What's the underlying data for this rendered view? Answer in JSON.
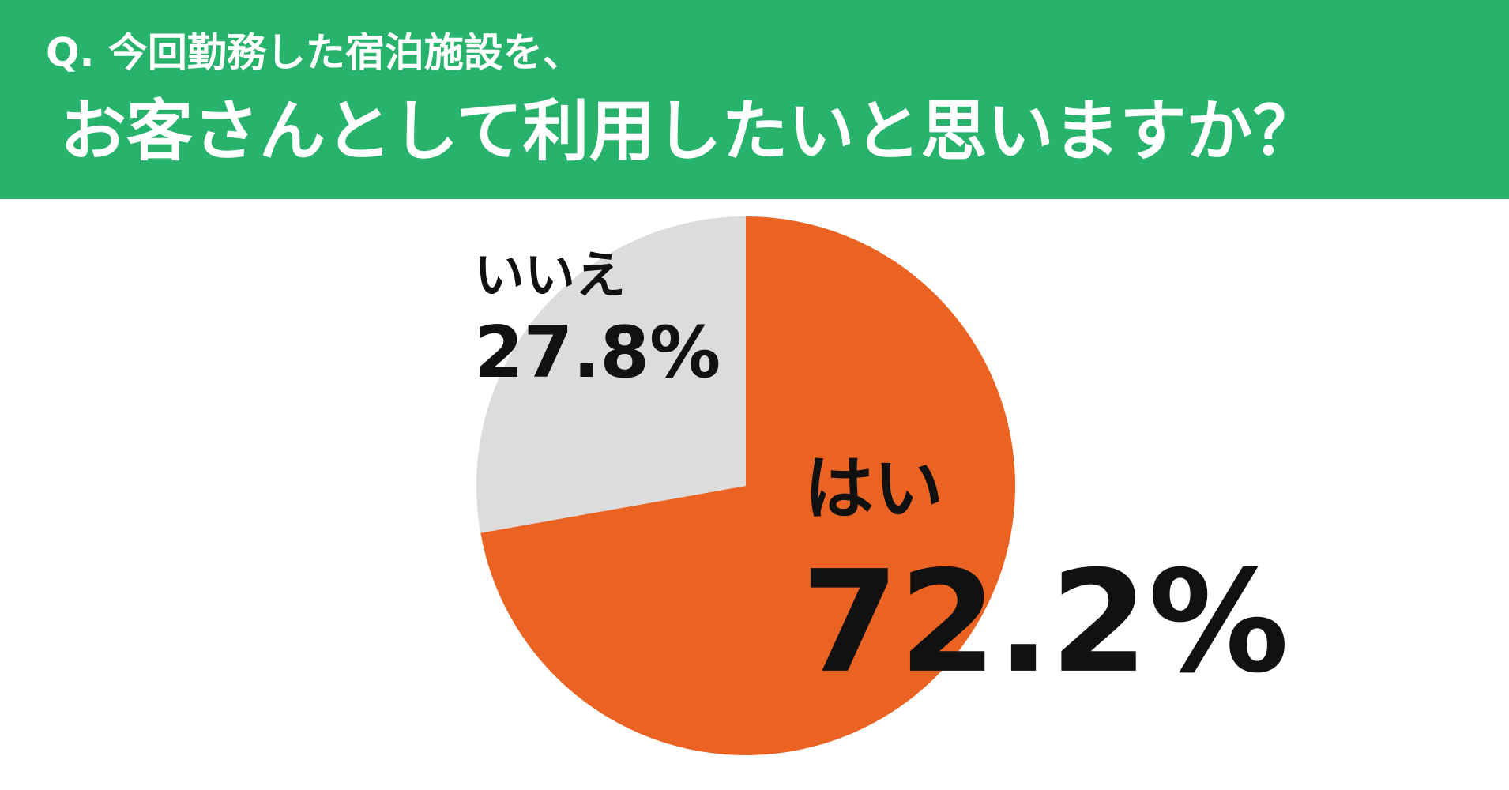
{
  "chart_data": {
    "type": "pie",
    "title": "Q. 今回勤務した宿泊施設を、",
    "subtitle": "お客さんとして利用したいと思いますか？",
    "categories": [
      "はい",
      "いいえ"
    ],
    "values": [
      72.2,
      27.8
    ],
    "value_labels": [
      "72.2%",
      "27.8%"
    ],
    "colors": [
      "#ea6323",
      "#dcdcdc"
    ],
    "header_color": "#27b36b"
  }
}
